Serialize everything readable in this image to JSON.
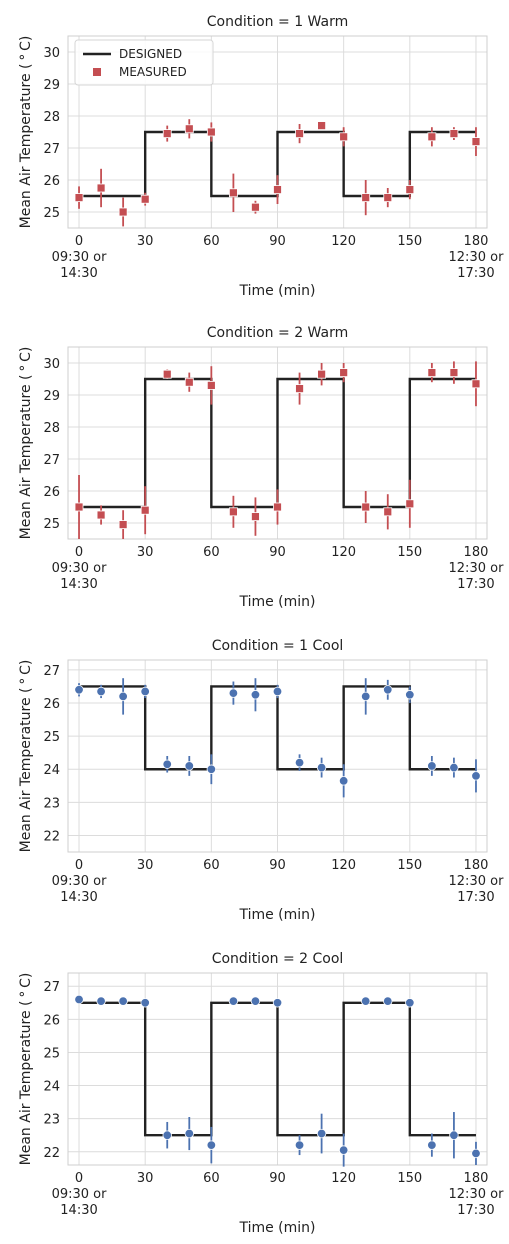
{
  "chart_data": [
    {
      "type": "line",
      "title": "Condition = 1 Warm",
      "xlabel": "Time (min)",
      "ylabel": "Mean Air Temperature ($^\\circ$C)",
      "xlim": [
        -5,
        185
      ],
      "ylim": [
        24.5,
        30.5
      ],
      "xticks": [
        0,
        30,
        60,
        90,
        120,
        150,
        180
      ],
      "xtick_labels": [
        "0\n09:30 or\n14:30",
        "30",
        "60",
        "90",
        "120",
        "150",
        "180\n12:30 or\n17:30"
      ],
      "yticks": [
        25,
        26,
        27,
        28,
        29,
        30
      ],
      "grid": true,
      "legend": {
        "placement": "top-left",
        "entries": [
          "DESIGNED",
          "MEASURED"
        ]
      },
      "series": [
        {
          "name": "DESIGNED",
          "kind": "step",
          "color": "#222222",
          "x": [
            0,
            30,
            30,
            60,
            60,
            90,
            90,
            120,
            120,
            150,
            150,
            180
          ],
          "y": [
            25.5,
            25.5,
            27.5,
            27.5,
            25.5,
            25.5,
            27.5,
            27.5,
            25.5,
            25.5,
            27.5,
            27.5
          ]
        },
        {
          "name": "MEASURED",
          "kind": "points",
          "marker": "square",
          "color": "#c44e52",
          "x": [
            0,
            10,
            20,
            30,
            40,
            50,
            60,
            70,
            80,
            90,
            100,
            110,
            120,
            130,
            140,
            150,
            160,
            170,
            180
          ],
          "y": [
            25.45,
            25.75,
            25.0,
            25.4,
            27.45,
            27.6,
            27.5,
            25.6,
            25.15,
            25.7,
            27.45,
            27.7,
            27.35,
            25.45,
            25.45,
            25.7,
            27.35,
            27.45,
            27.2
          ],
          "err": [
            0.35,
            0.6,
            0.45,
            0.2,
            0.25,
            0.3,
            0.3,
            0.6,
            0.2,
            0.45,
            0.3,
            0.1,
            0.3,
            0.55,
            0.3,
            0.3,
            0.3,
            0.2,
            0.45
          ]
        }
      ]
    },
    {
      "type": "line",
      "title": "Condition = 2 Warm",
      "xlabel": "Time (min)",
      "ylabel": "Mean Air Temperature ($^\\circ$C)",
      "xlim": [
        -5,
        185
      ],
      "ylim": [
        24.5,
        30.5
      ],
      "xticks": [
        0,
        30,
        60,
        90,
        120,
        150,
        180
      ],
      "xtick_labels": [
        "0\n09:30 or\n14:30",
        "30",
        "60",
        "90",
        "120",
        "150",
        "180\n12:30 or\n17:30"
      ],
      "yticks": [
        25,
        26,
        27,
        28,
        29,
        30
      ],
      "grid": true,
      "series": [
        {
          "name": "DESIGNED",
          "kind": "step",
          "color": "#222222",
          "x": [
            0,
            30,
            30,
            60,
            60,
            90,
            90,
            120,
            120,
            150,
            150,
            180
          ],
          "y": [
            25.5,
            25.5,
            29.5,
            29.5,
            25.5,
            25.5,
            29.5,
            29.5,
            25.5,
            25.5,
            29.5,
            29.5
          ]
        },
        {
          "name": "MEASURED",
          "kind": "points",
          "marker": "square",
          "color": "#c44e52",
          "x": [
            0,
            10,
            20,
            30,
            40,
            50,
            60,
            70,
            80,
            90,
            100,
            110,
            120,
            130,
            140,
            150,
            160,
            170,
            180
          ],
          "y": [
            25.5,
            25.25,
            24.95,
            25.4,
            29.65,
            29.4,
            29.3,
            25.35,
            25.2,
            25.5,
            29.2,
            29.65,
            29.7,
            25.5,
            25.35,
            25.6,
            29.7,
            29.7,
            29.35
          ],
          "err": [
            1.0,
            0.3,
            0.45,
            0.75,
            0.15,
            0.3,
            0.6,
            0.5,
            0.6,
            0.55,
            0.5,
            0.35,
            0.3,
            0.5,
            0.55,
            0.75,
            0.3,
            0.35,
            0.7
          ]
        }
      ]
    },
    {
      "type": "line",
      "title": "Condition = 1 Cool",
      "xlabel": "Time (min)",
      "ylabel": "Mean Air Temperature ($^\\circ$C)",
      "xlim": [
        -5,
        185
      ],
      "ylim": [
        21.5,
        27.3
      ],
      "xticks": [
        0,
        30,
        60,
        90,
        120,
        150,
        180
      ],
      "xtick_labels": [
        "0\n09:30 or\n14:30",
        "30",
        "60",
        "90",
        "120",
        "150",
        "180\n12:30 or\n17:30"
      ],
      "yticks": [
        22,
        23,
        24,
        25,
        26,
        27
      ],
      "grid": true,
      "series": [
        {
          "name": "DESIGNED",
          "kind": "step",
          "color": "#222222",
          "x": [
            0,
            30,
            30,
            60,
            60,
            90,
            90,
            120,
            120,
            150,
            150,
            180
          ],
          "y": [
            26.5,
            26.5,
            24.0,
            24.0,
            26.5,
            26.5,
            24.0,
            24.0,
            26.5,
            26.5,
            24.0,
            24.0
          ]
        },
        {
          "name": "MEASURED",
          "kind": "points",
          "marker": "circle",
          "color": "#4c72b0",
          "x": [
            0,
            10,
            20,
            30,
            40,
            50,
            60,
            70,
            80,
            90,
            100,
            110,
            120,
            130,
            140,
            150,
            160,
            170,
            180
          ],
          "y": [
            26.4,
            26.35,
            26.2,
            26.35,
            24.15,
            24.1,
            24.0,
            26.3,
            26.25,
            26.35,
            24.2,
            24.05,
            23.65,
            26.2,
            26.4,
            26.25,
            24.1,
            24.05,
            23.8
          ],
          "err": [
            0.2,
            0.2,
            0.55,
            0.2,
            0.25,
            0.3,
            0.45,
            0.35,
            0.5,
            0.2,
            0.25,
            0.3,
            0.5,
            0.55,
            0.3,
            0.25,
            0.3,
            0.3,
            0.5
          ]
        }
      ]
    },
    {
      "type": "line",
      "title": "Condition = 2 Cool",
      "xlabel": "Time (min)",
      "ylabel": "Mean Air Temperature ($^\\circ$C)",
      "xlim": [
        -5,
        185
      ],
      "ylim": [
        21.6,
        27.4
      ],
      "xticks": [
        0,
        30,
        60,
        90,
        120,
        150,
        180
      ],
      "xtick_labels": [
        "0\n09:30 or\n14:30",
        "30",
        "60",
        "90",
        "120",
        "150",
        "180\n12:30 or\n17:30"
      ],
      "yticks": [
        22,
        23,
        24,
        25,
        26,
        27
      ],
      "grid": true,
      "series": [
        {
          "name": "DESIGNED",
          "kind": "step",
          "color": "#222222",
          "x": [
            0,
            30,
            30,
            60,
            60,
            90,
            90,
            120,
            120,
            150,
            150,
            180
          ],
          "y": [
            26.5,
            26.5,
            22.5,
            22.5,
            26.5,
            26.5,
            22.5,
            22.5,
            26.5,
            26.5,
            22.5,
            22.5
          ]
        },
        {
          "name": "MEASURED",
          "kind": "points",
          "marker": "circle",
          "color": "#4c72b0",
          "x": [
            0,
            10,
            20,
            30,
            40,
            50,
            60,
            70,
            80,
            90,
            100,
            110,
            120,
            130,
            140,
            150,
            160,
            170,
            180
          ],
          "y": [
            26.6,
            26.55,
            26.55,
            26.5,
            22.5,
            22.55,
            22.2,
            26.55,
            26.55,
            26.5,
            22.2,
            22.55,
            22.05,
            26.55,
            26.55,
            26.5,
            22.2,
            22.5,
            21.95
          ],
          "err": [
            0.1,
            0.1,
            0.1,
            0.1,
            0.4,
            0.5,
            0.55,
            0.1,
            0.1,
            0.1,
            0.3,
            0.6,
            0.5,
            0.1,
            0.1,
            0.1,
            0.35,
            0.7,
            0.35
          ]
        }
      ]
    }
  ]
}
